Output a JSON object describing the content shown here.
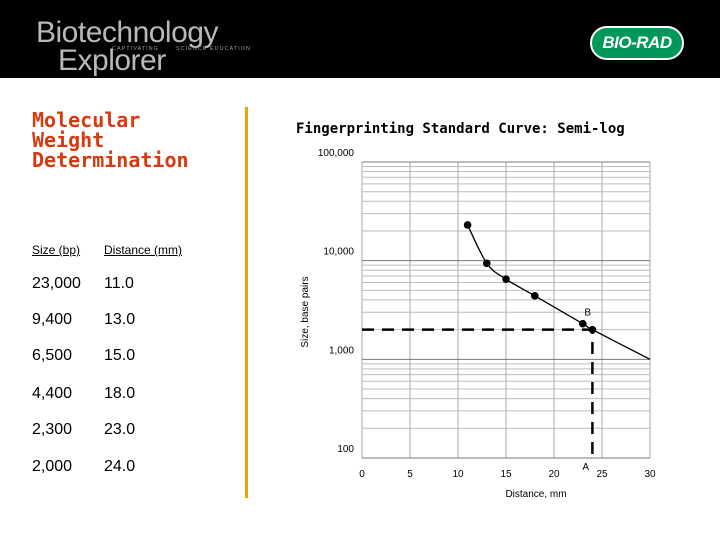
{
  "header": {
    "logo_line_1": "Biotechnology",
    "logo_line_2": "Explorer",
    "tagline_1": "CAPTIVATING",
    "tagline_2": "SCIENCE EDUCATION",
    "brand": "BIO-RAD",
    "brand_color": "#00985a",
    "background": "#000000"
  },
  "slide": {
    "title_lines": [
      "Molecular",
      "Weight",
      "Determination"
    ],
    "title_color": "#d53a10",
    "divider_color": "#f0a000"
  },
  "table": {
    "headers": [
      "Size (bp)",
      "Distance (mm)"
    ],
    "rows": [
      [
        "23,000",
        "11.0"
      ],
      [
        "9,400",
        "13.0"
      ],
      [
        "6,500",
        "15.0"
      ],
      [
        "4,400",
        "18.0"
      ],
      [
        "2,300",
        "23.0"
      ],
      [
        "2,000",
        "24.0"
      ]
    ]
  },
  "chart_data": {
    "type": "scatter",
    "title": "Fingerprinting Standard Curve:  Semi-log",
    "xlabel": "Distance, mm",
    "ylabel": "Size, base pairs",
    "xlim": [
      0,
      30
    ],
    "ylim": [
      100,
      100000
    ],
    "yscale": "log",
    "x_ticks": [
      "0",
      "5",
      "10",
      "15",
      "20",
      "25",
      "30"
    ],
    "y_ticks": [
      "100",
      "1,000",
      "10,000",
      "100,000"
    ],
    "grid": true,
    "series": [
      {
        "points": [
          {
            "x": 11.0,
            "y": 23000
          },
          {
            "x": 13.0,
            "y": 9400
          },
          {
            "x": 15.0,
            "y": 6500
          },
          {
            "x": 18.0,
            "y": 4400
          },
          {
            "x": 23.0,
            "y": 2300
          },
          {
            "x": 24.0,
            "y": 2000
          }
        ],
        "curve_end": {
          "x": 30,
          "y": 1000
        }
      }
    ],
    "annotations": [
      {
        "label": "A",
        "x": 24.0,
        "y": 100
      },
      {
        "label": "B",
        "x": 24.0,
        "y": 2000
      }
    ]
  }
}
